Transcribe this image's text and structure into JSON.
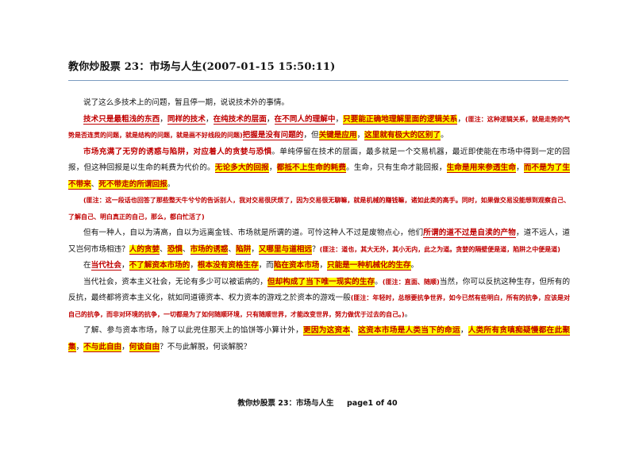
{
  "doc": {
    "title": "教你炒股票 23：市场与人生(2007-01-15 15:50:11)",
    "p1": "说了这么多技术上的问题，暂且停一期，说说技术外的事情。",
    "p2": {
      "a": "技术只是最粗浅的东西",
      "b": "，",
      "c": "同样的技术",
      "d": "，",
      "e": "在纯技术的层面",
      "f": "，",
      "g": "在不同人的理解中",
      "h": "，",
      "i": "只要能正确地理解里面的逻辑关系",
      "j": "，",
      "k": "(匪注：这种逻辑关系，就是走势的气势是否连贯的问题，就是结构的问题，就是画不好线段的问题)",
      "l": "把握是没有问题的",
      "m": "，但",
      "n": "关键是应用",
      "o": "，",
      "p": "这里就有极大的区别了",
      "q": "。"
    },
    "p3": {
      "a": "市场充满了无穷的诱惑与陷阱，对应着人的贪婪与恐惧",
      "b": "。单纯停留在技术的层面，最多就是一个交易机器，最近即使能在市场中得到一定的回报，但这种回报是以生命的耗费为代价的。",
      "c": "无论多大的回报",
      "d": "，",
      "e": "都抵不上生命的耗费",
      "f": "。生命，只有生命才能回报，",
      "g": "生命是用来参透生命",
      "h": "，",
      "i": "而不是为了生不带来",
      "j": "、",
      "k": "死不带走的所谓回报",
      "l": "。"
    },
    "note1": "(匪注：这一段话也回答了那些整天牛兮兮的告诉别人，我对交易很厌烦了，因为交易很无聊嘛，就是机械的赚钱嘛，诸如此类的高手。同时，如果做交易没能想到观察自己、了解自己、明白真正的自己，那么，都白忙活了)",
    "p4": {
      "a": "但有一种人，自以为清高，自以为远离金钱、市场就是所谓的道。可怜这种人不过是废物点心，他们",
      "b": "所谓的道不过是自渎的产物",
      "c": "，道不远人，道又岂何市场相违？",
      "d": "人的贪婪",
      "e": "、",
      "f": "恐惧",
      "g": "、",
      "h": "市场的诱惑",
      "i": "、",
      "j": "陷阱",
      "k": "，",
      "l": "又哪里与道相远",
      "m": "？",
      "n": "(匪注：道也，其大无外，其小无内，此之为道。贪婪的隔壁便是道，陷阱之中便是道)"
    },
    "p5": {
      "a": "在",
      "b": "当代社会",
      "c": "，",
      "d": "不了解资本市场的",
      "e": "，",
      "f": "根本没有资格生存",
      "g": "，而",
      "h": "陷在资本市场",
      "i": "，",
      "j": "只能是一种机械化的生存",
      "k": "。"
    },
    "p6": {
      "a": "当代社会，资本主义社会，无论有多少可以被诟病的，",
      "b": "但却构成了当下唯一现实的生存",
      "c": "。",
      "d": "(匪注：直面、随顺)",
      "e": "当然，你可以反抗这种生存，但所有的反抗，最终都将资本主义化，就如同道德资本、权力资本的游戏之於资本的游戏一般",
      "f": "(匪注：年轻时，总想要抗争世界，如今已然有些明白，所有的抗争，应该是对自己的抗争，而非对环境的抗争，一切都是为了如何随顺环境，只有随顺世界，才能改变世界，努力做优于过去的自己。)",
      "g": "。"
    },
    "p7": {
      "a": "了解、参与资本市场，除了以此兜住那天上的馅饼等小算计外，",
      "b": "更因为这资本",
      "c": "、",
      "d": "这资本市场是人类当下的命运",
      "e": "，",
      "f": "人类所有贪嗔痴疑慢都在此聚集",
      "g": "，",
      "h": "不与此自由",
      "i": "，",
      "j": "何谈自由",
      "k": "？不与此解脱，何谈解脱？"
    }
  },
  "footer": {
    "text": "教你炒股票 23：市场与人生",
    "page": "page1 of 40"
  },
  "colors": {
    "highlight": "#ffff00",
    "red": "#c00000",
    "rule": "#7b9cc1"
  }
}
